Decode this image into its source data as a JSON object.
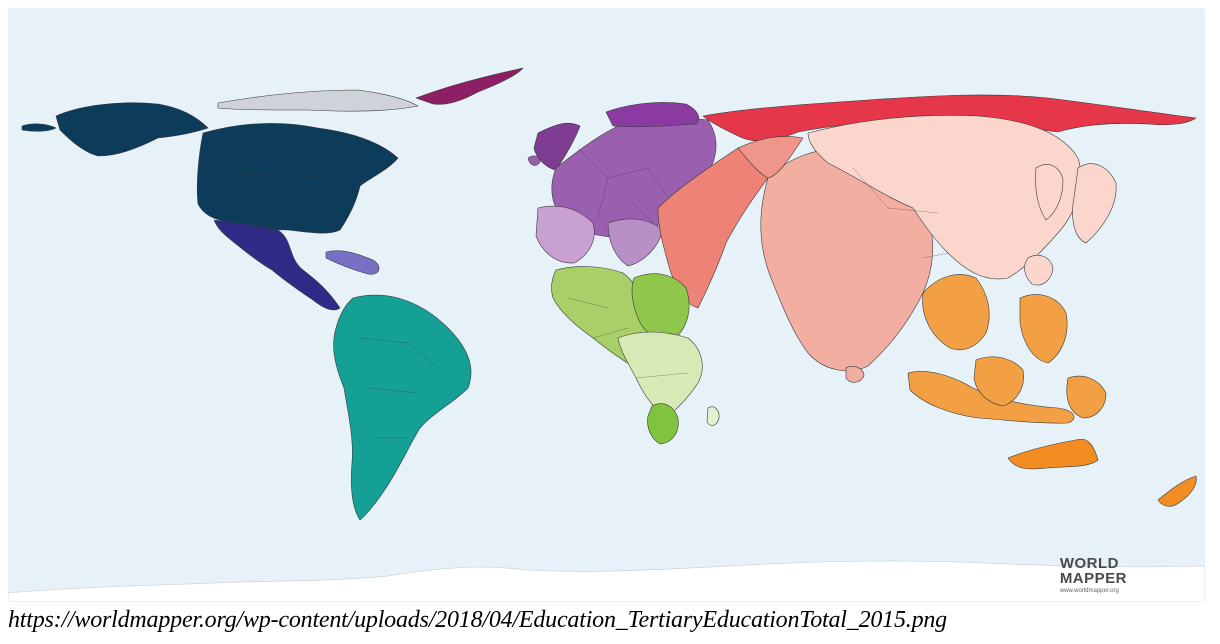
{
  "map": {
    "regions": [
      {
        "name": "North America",
        "color": "#0d3b5a"
      },
      {
        "name": "Central America & Caribbean",
        "color": "#2e2a86"
      },
      {
        "name": "South America",
        "color": "#14a095"
      },
      {
        "name": "Western Europe",
        "color": "#7e3d93"
      },
      {
        "name": "Eastern Europe",
        "color": "#c8a0d2"
      },
      {
        "name": "Northern Africa",
        "color": "#a8cf68"
      },
      {
        "name": "Southern Africa",
        "color": "#80c33e"
      },
      {
        "name": "Middle East",
        "color": "#ef8277"
      },
      {
        "name": "Southern Asia",
        "color": "#f3aea2"
      },
      {
        "name": "Eastern Asia",
        "color": "#fbd6cc"
      },
      {
        "name": "Asia Pacific",
        "color": "#f2a043"
      },
      {
        "name": "Russia",
        "color": "#e6364a"
      }
    ],
    "ocean_color": "#e6f2f8"
  },
  "logo": {
    "line1": "WORLD",
    "line2": "MAPPER",
    "line3": "www.worldmapper.org"
  },
  "caption": {
    "url": "https://worldmapper.org/wp-content/uploads/2018/04/Education_TertiaryEducationTotal_2015.png"
  }
}
